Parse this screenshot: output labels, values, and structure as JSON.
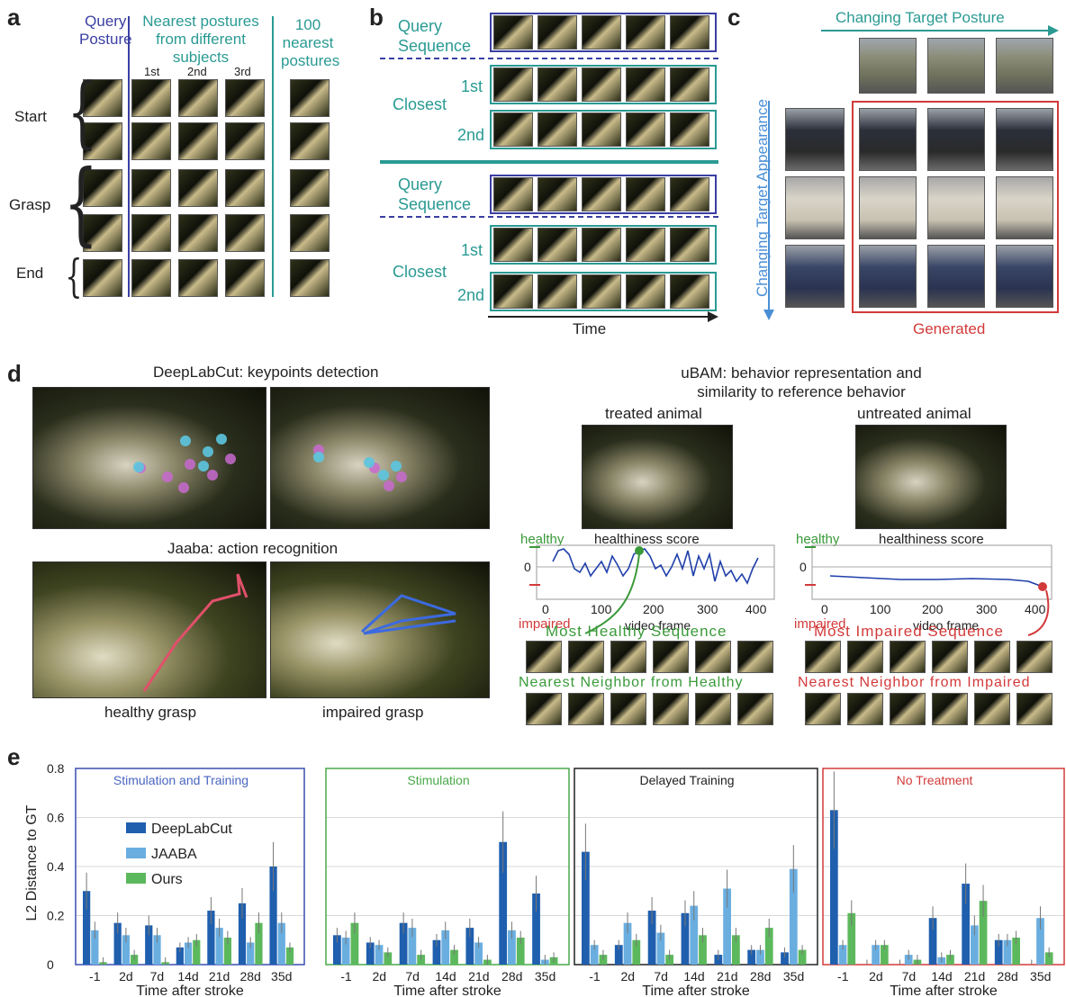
{
  "panel_a": {
    "label": "a",
    "col_query": "Query\nPosture",
    "col_nearest": "Nearest postures\nfrom different\nsubjects",
    "col_100": "100\nnearest\npostures",
    "ranks": [
      "1st",
      "2nd",
      "3rd"
    ],
    "rows": [
      "Start",
      "Grasp",
      "End"
    ]
  },
  "panel_b": {
    "label": "b",
    "query_sequence": "Query\nSequence",
    "closest": "Closest",
    "ranks": [
      "1st",
      "2nd"
    ],
    "time": "Time"
  },
  "panel_c": {
    "label": "c",
    "top_arrow": "Changing Target Posture",
    "side_arrow": "Changing Target Appearance",
    "generated": "Generated"
  },
  "panel_d": {
    "label": "d",
    "deeplabcut_title": "DeepLabCut: keypoints detection",
    "jaaba_title": "Jaaba: action recognition",
    "healthy_grasp": "healthy grasp",
    "impaired_grasp": "impaired grasp",
    "ubam_title": "uBAM: behavior representation and\nsimilarity to reference behavior",
    "treated": "treated animal",
    "untreated": "untreated animal",
    "healthy": "healthy",
    "impaired": "impaired",
    "healthiness_score": "healthiness score",
    "video_frame": "video frame",
    "zero": "0",
    "x_ticks_left": [
      "0",
      "100",
      "200",
      "300",
      "400"
    ],
    "x_ticks_right": [
      "0",
      "100",
      "200",
      "300",
      "400"
    ],
    "most_healthy": "Most Healthy Sequence",
    "most_impaired": "Most Impaired Sequence",
    "nn_healthy": "Nearest Neighbor from Healthy",
    "nn_impaired": "Nearest Neighbor from Impaired"
  },
  "panel_e": {
    "label": "e",
    "ylabel": "L2 Distance to GT",
    "xlabel": "Time after stroke",
    "yticks": [
      "0",
      "0.2",
      "0.4",
      "0.6",
      "0.8"
    ],
    "legend": [
      "DeepLabCut",
      "JAABA",
      "Ours"
    ]
  },
  "chart_data": {
    "type": "bar",
    "ylabel": "L2 Distance to GT",
    "xlabel": "Time after stroke",
    "ylim": [
      0,
      0.8
    ],
    "grid": true,
    "legend_placement": "inside first subplot, upper-left",
    "categories": [
      "-1",
      "2d",
      "7d",
      "14d",
      "21d",
      "28d",
      "35d"
    ],
    "series_names": [
      "DeepLabCut",
      "JAABA",
      "Ours"
    ],
    "series_colors": [
      "#1f5fae",
      "#6aaee0",
      "#5cb85c"
    ],
    "subplots": [
      {
        "title": "Stimulation and Training",
        "frame_color": "#3a4fb0",
        "title_color": "#4a66c0",
        "values": [
          [
            0.3,
            0.17,
            0.16,
            0.07,
            0.22,
            0.25,
            0.4
          ],
          [
            0.14,
            0.12,
            0.12,
            0.09,
            0.15,
            0.09,
            0.17
          ],
          [
            0.01,
            0.04,
            0.01,
            0.1,
            0.11,
            0.17,
            0.07
          ]
        ]
      },
      {
        "title": "Stimulation",
        "frame_color": "#4aa84a",
        "title_color": "#4aa84a",
        "values": [
          [
            0.12,
            0.09,
            0.17,
            0.1,
            0.15,
            0.5,
            0.29
          ],
          [
            0.11,
            0.08,
            0.15,
            0.14,
            0.09,
            0.14,
            0.02
          ],
          [
            0.17,
            0.05,
            0.04,
            0.06,
            0.02,
            0.11,
            0.03
          ]
        ]
      },
      {
        "title": "Delayed Training",
        "frame_color": "#222222",
        "title_color": "#222222",
        "values": [
          [
            0.46,
            0.08,
            0.22,
            0.21,
            0.04,
            0.06,
            0.05
          ],
          [
            0.08,
            0.17,
            0.13,
            0.24,
            0.31,
            0.06,
            0.39
          ],
          [
            0.04,
            0.1,
            0.04,
            0.12,
            0.12,
            0.15,
            0.06
          ]
        ]
      },
      {
        "title": "No Treatment",
        "frame_color": "#d23a3a",
        "title_color": "#d23a3a",
        "values": [
          [
            0.63,
            0.0,
            0.0,
            0.19,
            0.33,
            0.1,
            0.0
          ],
          [
            0.08,
            0.08,
            0.04,
            0.03,
            0.16,
            0.1,
            0.19
          ],
          [
            0.21,
            0.08,
            0.02,
            0.04,
            0.26,
            0.11,
            0.05
          ]
        ]
      }
    ]
  }
}
